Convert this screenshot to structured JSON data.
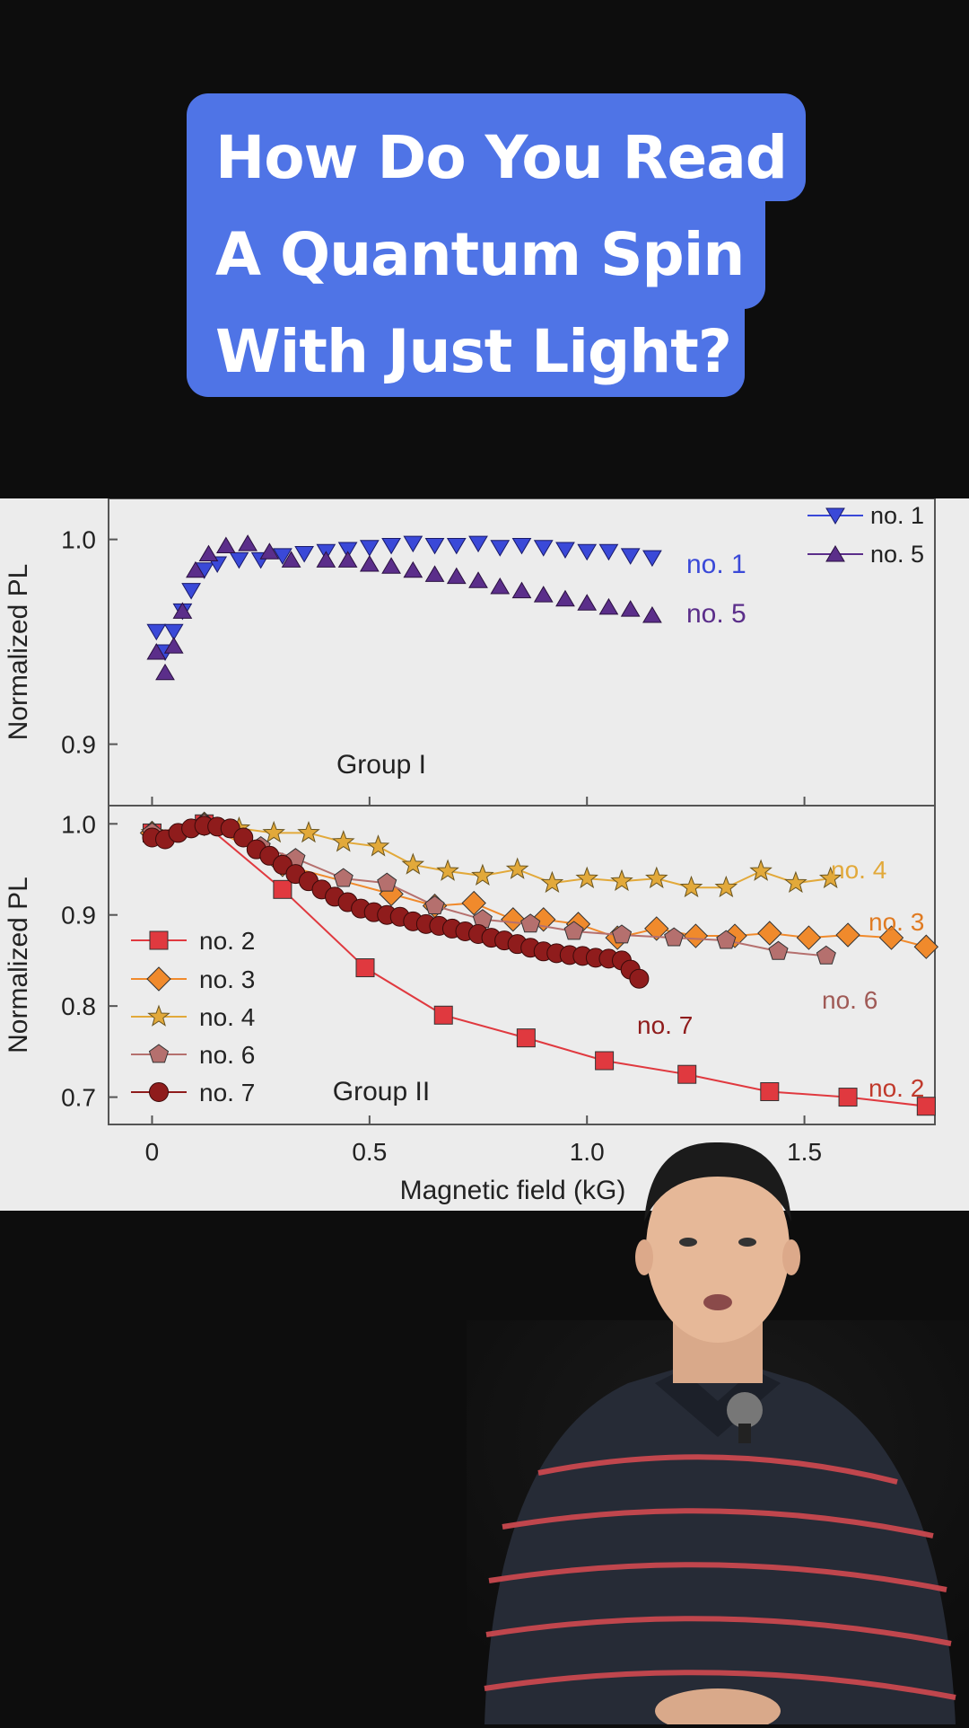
{
  "title": {
    "lines": [
      "How Do You Read",
      "A Quantum Spin",
      "With Just Light?"
    ]
  },
  "colors": {
    "background": "#0d0d0d",
    "title_card": "#4f74e6",
    "figure_bg": "#ececec"
  },
  "chart_data": [
    {
      "type": "scatter",
      "group_label": "Group I",
      "ylabel": "Normalized PL",
      "xlabel": "",
      "xlim": [
        -0.1,
        1.8
      ],
      "ylim": [
        0.87,
        1.02
      ],
      "yticks": [
        {
          "v": 0.9,
          "label": "0.9"
        },
        {
          "v": 1.0,
          "label": "1.0"
        }
      ],
      "xticks": [
        0,
        0.5,
        1.0,
        1.5
      ],
      "legend": {
        "placement": "top-right",
        "entries": [
          "no. 1",
          "no. 5"
        ]
      },
      "series": [
        {
          "name": "no. 1",
          "label": "no. 1",
          "color": "#3a49d8",
          "marker": "triangle-down",
          "x": [
            0.01,
            0.03,
            0.05,
            0.07,
            0.09,
            0.12,
            0.15,
            0.2,
            0.25,
            0.3,
            0.35,
            0.4,
            0.45,
            0.5,
            0.55,
            0.6,
            0.65,
            0.7,
            0.75,
            0.8,
            0.85,
            0.9,
            0.95,
            1.0,
            1.05,
            1.1,
            1.15
          ],
          "y": [
            0.955,
            0.945,
            0.955,
            0.965,
            0.975,
            0.985,
            0.988,
            0.99,
            0.99,
            0.992,
            0.993,
            0.994,
            0.995,
            0.996,
            0.997,
            0.998,
            0.997,
            0.997,
            0.998,
            0.996,
            0.997,
            0.996,
            0.995,
            0.994,
            0.994,
            0.992,
            0.991
          ]
        },
        {
          "name": "no. 5",
          "label": "no. 5",
          "color": "#5b2e8a",
          "marker": "triangle-up",
          "x": [
            0.01,
            0.03,
            0.05,
            0.07,
            0.1,
            0.13,
            0.17,
            0.22,
            0.27,
            0.32,
            0.4,
            0.45,
            0.5,
            0.55,
            0.6,
            0.65,
            0.7,
            0.75,
            0.8,
            0.85,
            0.9,
            0.95,
            1.0,
            1.05,
            1.1,
            1.15
          ],
          "y": [
            0.945,
            0.935,
            0.948,
            0.965,
            0.985,
            0.993,
            0.997,
            0.998,
            0.994,
            0.99,
            0.99,
            0.99,
            0.988,
            0.987,
            0.985,
            0.983,
            0.982,
            0.98,
            0.977,
            0.975,
            0.973,
            0.971,
            0.969,
            0.967,
            0.966,
            0.963
          ]
        }
      ]
    },
    {
      "type": "line",
      "group_label": "Group II",
      "ylabel": "Normalized PL",
      "xlabel": "Magnetic field (kG)",
      "xlim": [
        -0.1,
        1.8
      ],
      "ylim": [
        0.67,
        1.02
      ],
      "yticks": [
        {
          "v": 0.7,
          "label": "0.7"
        },
        {
          "v": 0.8,
          "label": "0.8"
        },
        {
          "v": 0.9,
          "label": "0.9"
        },
        {
          "v": 1.0,
          "label": "1.0"
        }
      ],
      "xticks": [
        {
          "v": 0,
          "label": "0"
        },
        {
          "v": 0.5,
          "label": "0.5"
        },
        {
          "v": 1.0,
          "label": "1.0"
        },
        {
          "v": 1.5,
          "label": "1.5"
        }
      ],
      "legend": {
        "placement": "bottom-left",
        "entries": [
          "no. 2",
          "no. 3",
          "no. 4",
          "no. 6",
          "no. 7"
        ]
      },
      "series": [
        {
          "name": "no. 2",
          "label": "no. 2",
          "color": "#e0393f",
          "marker": "square",
          "x": [
            0.0,
            0.12,
            0.3,
            0.49,
            0.67,
            0.86,
            1.04,
            1.23,
            1.42,
            1.6,
            1.78
          ],
          "y": [
            0.99,
            1.0,
            0.928,
            0.842,
            0.79,
            0.765,
            0.74,
            0.725,
            0.706,
            0.7,
            0.69
          ]
        },
        {
          "name": "no. 3",
          "label": "no. 3",
          "color": "#f08a2c",
          "marker": "diamond",
          "x": [
            0.0,
            0.12,
            0.3,
            0.55,
            0.65,
            0.74,
            0.83,
            0.9,
            0.98,
            1.07,
            1.16,
            1.25,
            1.34,
            1.42,
            1.51,
            1.6,
            1.7,
            1.78
          ],
          "y": [
            0.99,
            1.0,
            0.955,
            0.923,
            0.91,
            0.913,
            0.895,
            0.895,
            0.89,
            0.875,
            0.885,
            0.877,
            0.877,
            0.88,
            0.875,
            0.878,
            0.875,
            0.865
          ]
        },
        {
          "name": "no. 4",
          "label": "no. 4",
          "color": "#e2a93a",
          "marker": "star",
          "x": [
            0.0,
            0.12,
            0.2,
            0.28,
            0.36,
            0.44,
            0.52,
            0.6,
            0.68,
            0.76,
            0.84,
            0.92,
            1.0,
            1.08,
            1.16,
            1.24,
            1.32,
            1.4,
            1.48,
            1.56
          ],
          "y": [
            0.99,
            1.0,
            0.995,
            0.99,
            0.99,
            0.98,
            0.975,
            0.955,
            0.948,
            0.943,
            0.95,
            0.935,
            0.94,
            0.937,
            0.94,
            0.93,
            0.93,
            0.948,
            0.935,
            0.94
          ]
        },
        {
          "name": "no. 6",
          "label": "no. 6",
          "color": "#b5706e",
          "marker": "pentagon",
          "x": [
            0.0,
            0.12,
            0.25,
            0.33,
            0.44,
            0.54,
            0.65,
            0.76,
            0.87,
            0.97,
            1.08,
            1.2,
            1.32,
            1.44,
            1.55
          ],
          "y": [
            0.99,
            1.0,
            0.975,
            0.962,
            0.94,
            0.935,
            0.91,
            0.895,
            0.89,
            0.882,
            0.878,
            0.875,
            0.872,
            0.86,
            0.855
          ]
        },
        {
          "name": "no. 7",
          "label": "no. 7",
          "color": "#8f1c1c",
          "marker": "circle",
          "x": [
            0.0,
            0.03,
            0.06,
            0.09,
            0.12,
            0.15,
            0.18,
            0.21,
            0.24,
            0.27,
            0.3,
            0.33,
            0.36,
            0.39,
            0.42,
            0.45,
            0.48,
            0.51,
            0.54,
            0.57,
            0.6,
            0.63,
            0.66,
            0.69,
            0.72,
            0.75,
            0.78,
            0.81,
            0.84,
            0.87,
            0.9,
            0.93,
            0.96,
            0.99,
            1.02,
            1.05,
            1.08,
            1.1,
            1.12
          ],
          "y": [
            0.985,
            0.983,
            0.99,
            0.995,
            0.998,
            0.997,
            0.995,
            0.985,
            0.972,
            0.965,
            0.955,
            0.945,
            0.937,
            0.928,
            0.92,
            0.914,
            0.907,
            0.903,
            0.9,
            0.898,
            0.893,
            0.89,
            0.888,
            0.885,
            0.882,
            0.879,
            0.875,
            0.872,
            0.868,
            0.864,
            0.86,
            0.858,
            0.856,
            0.855,
            0.853,
            0.852,
            0.85,
            0.84,
            0.83
          ]
        }
      ]
    }
  ]
}
